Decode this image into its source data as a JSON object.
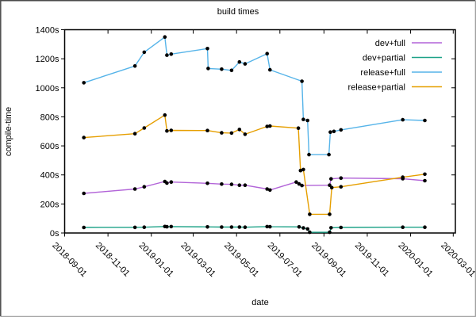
{
  "chart_data": {
    "type": "line",
    "title": "build times",
    "xlabel": "date",
    "ylabel": "compile-time",
    "grid": false,
    "legend_position": "top-right-inside",
    "ylim": [
      0,
      1400
    ],
    "xlim": [
      "2018-09-01",
      "2020-03-03"
    ],
    "y_tick_labels": [
      "0s",
      "200s",
      "400s",
      "600s",
      "800s",
      "1000s",
      "1200s",
      "1400s"
    ],
    "x_tick_labels": [
      "2018-09-01",
      "2018-11-01",
      "2019-01-01",
      "2019-03-01",
      "2019-05-01",
      "2019-07-01",
      "2019-09-01",
      "2019-11-01",
      "2020-01-01",
      "2020-03-01"
    ],
    "point_color": "#000000",
    "axis_color": "#000000",
    "series": [
      {
        "name": "dev+full",
        "color": "#b264d8",
        "points": [
          [
            "2018-09-28",
            273
          ],
          [
            "2018-12-09",
            303
          ],
          [
            "2018-12-22",
            318
          ],
          [
            "2019-01-20",
            355
          ],
          [
            "2019-01-23",
            344
          ],
          [
            "2019-01-29",
            351
          ],
          [
            "2019-03-21",
            342
          ],
          [
            "2019-04-10",
            337
          ],
          [
            "2019-04-24",
            335
          ],
          [
            "2019-05-05",
            329
          ],
          [
            "2019-05-13",
            329
          ],
          [
            "2019-06-13",
            303
          ],
          [
            "2019-06-17",
            296
          ],
          [
            "2019-07-24",
            351
          ],
          [
            "2019-07-28",
            338
          ],
          [
            "2019-08-01",
            327
          ],
          [
            "2019-09-09",
            329
          ],
          [
            "2019-09-11",
            373
          ],
          [
            "2019-09-25",
            378
          ],
          [
            "2019-12-21",
            374
          ],
          [
            "2020-01-21",
            360
          ]
        ]
      },
      {
        "name": "dev+partial",
        "color": "#1da287",
        "points": [
          [
            "2018-09-28",
            38
          ],
          [
            "2018-12-09",
            39
          ],
          [
            "2018-12-22",
            40
          ],
          [
            "2019-01-20",
            45
          ],
          [
            "2019-01-23",
            43
          ],
          [
            "2019-01-29",
            44
          ],
          [
            "2019-03-21",
            42
          ],
          [
            "2019-04-10",
            41
          ],
          [
            "2019-04-24",
            41
          ],
          [
            "2019-05-05",
            41
          ],
          [
            "2019-05-13",
            40
          ],
          [
            "2019-06-13",
            44
          ],
          [
            "2019-06-17",
            43
          ],
          [
            "2019-07-28",
            42
          ],
          [
            "2019-08-03",
            35
          ],
          [
            "2019-08-09",
            28
          ],
          [
            "2019-08-12",
            5
          ],
          [
            "2019-09-09",
            5
          ],
          [
            "2019-09-11",
            36
          ],
          [
            "2019-09-25",
            38
          ],
          [
            "2019-12-21",
            40
          ],
          [
            "2020-01-21",
            40
          ]
        ]
      },
      {
        "name": "release+full",
        "color": "#56b4e9",
        "points": [
          [
            "2018-09-28",
            1035
          ],
          [
            "2018-12-09",
            1150
          ],
          [
            "2018-12-22",
            1245
          ],
          [
            "2019-01-20",
            1350
          ],
          [
            "2019-01-23",
            1225
          ],
          [
            "2019-01-29",
            1232
          ],
          [
            "2019-03-21",
            1270
          ],
          [
            "2019-03-22",
            1133
          ],
          [
            "2019-04-10",
            1128
          ],
          [
            "2019-04-24",
            1120
          ],
          [
            "2019-05-05",
            1178
          ],
          [
            "2019-05-13",
            1165
          ],
          [
            "2019-06-13",
            1235
          ],
          [
            "2019-06-17",
            1124
          ],
          [
            "2019-08-01",
            1045
          ],
          [
            "2019-08-03",
            782
          ],
          [
            "2019-08-09",
            775
          ],
          [
            "2019-08-11",
            540
          ],
          [
            "2019-09-08",
            540
          ],
          [
            "2019-09-10",
            695
          ],
          [
            "2019-09-15",
            700
          ],
          [
            "2019-09-25",
            710
          ],
          [
            "2019-12-21",
            780
          ],
          [
            "2020-01-21",
            775
          ]
        ]
      },
      {
        "name": "release+partial",
        "color": "#e69f00",
        "points": [
          [
            "2018-09-28",
            657
          ],
          [
            "2018-12-09",
            684
          ],
          [
            "2018-12-22",
            723
          ],
          [
            "2019-01-20",
            812
          ],
          [
            "2019-01-23",
            703
          ],
          [
            "2019-01-29",
            707
          ],
          [
            "2019-03-21",
            706
          ],
          [
            "2019-04-10",
            690
          ],
          [
            "2019-04-24",
            688
          ],
          [
            "2019-05-05",
            713
          ],
          [
            "2019-05-13",
            680
          ],
          [
            "2019-06-13",
            734
          ],
          [
            "2019-06-17",
            737
          ],
          [
            "2019-07-27",
            722
          ],
          [
            "2019-07-30",
            430
          ],
          [
            "2019-08-03",
            437
          ],
          [
            "2019-08-12",
            129
          ],
          [
            "2019-09-09",
            129
          ],
          [
            "2019-09-12",
            313
          ],
          [
            "2019-09-25",
            318
          ],
          [
            "2019-12-21",
            384
          ],
          [
            "2020-01-21",
            405
          ]
        ]
      }
    ]
  }
}
